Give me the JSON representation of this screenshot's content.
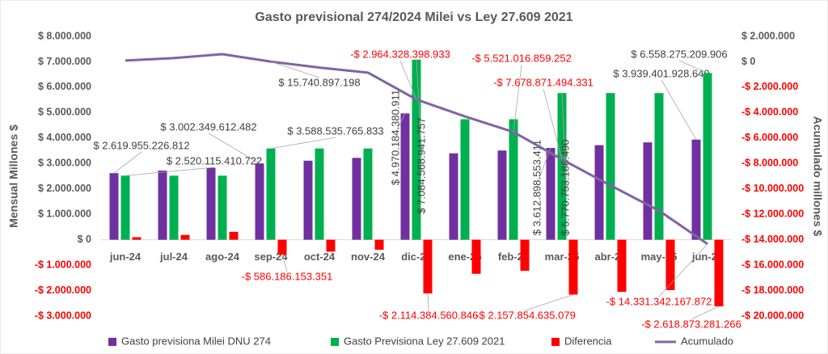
{
  "chart_data": {
    "type": "bar",
    "title": "Gasto previsional 274/2024 Milei vs Ley 27.609 2021",
    "y_label": "Mensual Millones $",
    "y2_label": "Acumulado millones $",
    "categories": [
      "jun-24",
      "jul-24",
      "ago-24",
      "sep-24",
      "oct-24",
      "nov-24",
      "dic-24",
      "ene-25",
      "feb-25",
      "mar-25",
      "abr-25",
      "may-25",
      "jun-25"
    ],
    "series": [
      {
        "name": "Gasto previsiona Milei DNU 274",
        "type": "bar",
        "color": "#7030a0",
        "values": [
          2619955.226812,
          2720000,
          2830000,
          3002349.612482,
          3110000,
          3220000,
          4970184.380911,
          3400000,
          3510000,
          3612898.553411,
          3720000,
          3830000,
          3939401.92864
        ],
        "value_labels": [
          "$ 2.619.955.226.812",
          null,
          null,
          "$ 3.002.349.612.482",
          null,
          null,
          "$ 4.970.184.380.911",
          null,
          null,
          "$ 3.612.898.553.411",
          null,
          null,
          "$ 3.939.401.928.640"
        ]
      },
      {
        "name": "Gasto Previsiona Ley 27.609 2021",
        "type": "bar",
        "color": "#00b050",
        "values": [
          2520115.410722,
          2520000,
          2520000,
          3588535.765833,
          3590000,
          3590000,
          7084568.941757,
          4740000,
          4740000,
          5770753.18849,
          5770000,
          5770000,
          6558275.209906
        ],
        "value_labels": [
          "$ 2.520.115.410.722",
          null,
          null,
          "$ 3.588.535.765.833",
          null,
          null,
          "$ 7.084.568.941.757",
          null,
          null,
          "$ 5.770.753.188.490",
          null,
          null,
          "$ 6.558.275.209.906"
        ]
      },
      {
        "name": "Diferencia",
        "type": "bar",
        "color": "#ff0000",
        "values": [
          99840,
          190000,
          310000,
          -586186.153351,
          -470000,
          -395000,
          -2114384.560846,
          -1340000,
          -1220000,
          -2157854.635079,
          -2050000,
          -1980000,
          -2618873.281266
        ],
        "value_labels": [
          null,
          null,
          null,
          "-$ 586.186.153.351",
          null,
          null,
          "-$ 2.114.384.560.846",
          null,
          null,
          "-$ 2.157.854.635.079",
          null,
          null,
          "-$ 2.618.873.281.266"
        ]
      },
      {
        "name": "Acumulado",
        "type": "line",
        "axis": "y2",
        "color": "#8064a2",
        "values": [
          99840,
          290000,
          600000,
          15740.897198,
          -454000,
          -849944,
          -2964328.398933,
          -4300000,
          -5521016.859252,
          -7678871.494331,
          -9728000,
          -11710000,
          -14331342.167872
        ],
        "value_labels": [
          null,
          null,
          null,
          "$ 15.740.897.198",
          null,
          null,
          "-$ 2.964.328.398.933",
          null,
          "-$ 5.521.016.859.252",
          "-$ 7.678.871.494.331",
          null,
          null,
          "-$ 14.331.342.167.872"
        ]
      }
    ],
    "ylim": [
      -3000000,
      8000000
    ],
    "yticks": [
      {
        "value": -3000000,
        "label": "-$ 3.000.000"
      },
      {
        "value": -2000000,
        "label": "-$ 2.000.000"
      },
      {
        "value": -1000000,
        "label": "-$ 1.000.000"
      },
      {
        "value": 0,
        "label": "$ 0"
      },
      {
        "value": 1000000,
        "label": "$ 1.000.000"
      },
      {
        "value": 2000000,
        "label": "$ 2.000.000"
      },
      {
        "value": 3000000,
        "label": "$ 3.000.000"
      },
      {
        "value": 4000000,
        "label": "$ 4.000.000"
      },
      {
        "value": 5000000,
        "label": "$ 5.000.000"
      },
      {
        "value": 6000000,
        "label": "$ 6.000.000"
      },
      {
        "value": 7000000,
        "label": "$ 7.000.000"
      },
      {
        "value": 8000000,
        "label": "$ 8.000.000"
      }
    ],
    "y2lim": [
      -20000000,
      2000000
    ],
    "y2ticks": [
      {
        "value": -20000000,
        "label": "-$ 20.000.000"
      },
      {
        "value": -18000000,
        "label": "-$ 18.000.000"
      },
      {
        "value": -16000000,
        "label": "-$ 16.000.000"
      },
      {
        "value": -14000000,
        "label": "-$ 14.000.000"
      },
      {
        "value": -12000000,
        "label": "-$ 12.000.000"
      },
      {
        "value": -10000000,
        "label": "-$ 10.000.000"
      },
      {
        "value": -8000000,
        "label": "-$ 8.000.000"
      },
      {
        "value": -6000000,
        "label": "-$ 6.000.000"
      },
      {
        "value": -4000000,
        "label": "-$ 4.000.000"
      },
      {
        "value": -2000000,
        "label": "-$ 2.000.000"
      },
      {
        "value": 0,
        "label": "$ 0"
      },
      {
        "value": 2000000,
        "label": "$ 2.000.000"
      }
    ],
    "negative_label_color": "#ff0000",
    "legend": "bottom"
  }
}
